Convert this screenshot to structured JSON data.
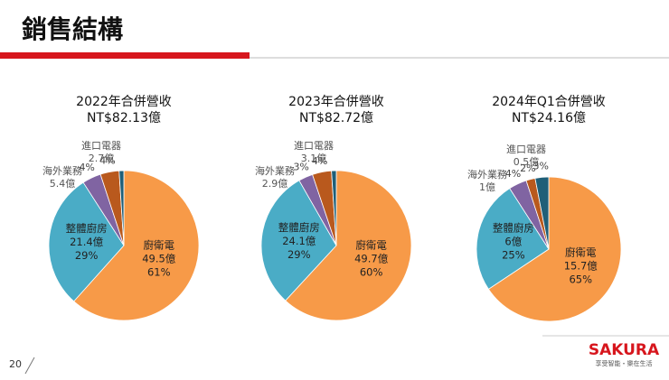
{
  "header": {
    "title": "銷售結構"
  },
  "page_number": "20",
  "logo": {
    "name": "SAKURA",
    "tagline": "享受智能・樂在生活"
  },
  "chart_data": [
    {
      "type": "pie",
      "title": "2022年合併營收",
      "subtitle": "NT$82.13億",
      "categories": [
        "廚衛電",
        "整體廚房",
        "海外業務",
        "進口電器",
        null
      ],
      "amounts": [
        "49.5億",
        "21.4億",
        "5.4億",
        "2.7億",
        null
      ],
      "values": [
        61,
        29,
        4,
        4,
        1
      ],
      "value_labels": [
        "61%",
        "29%",
        "4%",
        "4%",
        null
      ],
      "colors": [
        "#f79a48",
        "#4aacc6",
        "#8064a2",
        "#b9591d",
        "#1f5f78"
      ]
    },
    {
      "type": "pie",
      "title": "2023年合併營收",
      "subtitle": "NT$82.72億",
      "categories": [
        "廚衛電",
        "整體廚房",
        "海外業務",
        "進口電器",
        null
      ],
      "amounts": [
        "49.7億",
        "24.1億",
        "2.9億",
        "3.1億",
        null
      ],
      "values": [
        60,
        29,
        3,
        4,
        1
      ],
      "value_labels": [
        "60%",
        "29%",
        "3%",
        "4%",
        null
      ],
      "colors": [
        "#f79a48",
        "#4aacc6",
        "#8064a2",
        "#b9591d",
        "#1f5f78"
      ]
    },
    {
      "type": "pie",
      "title": "2024年Q1合併營收",
      "subtitle": "NT$24.16億",
      "categories": [
        "廚衛電",
        "整體廚房",
        "海外業務",
        "進口電器",
        null
      ],
      "amounts": [
        "15.7億",
        "6億",
        "1億",
        "0.5億",
        null
      ],
      "values": [
        65,
        25,
        4,
        2,
        3
      ],
      "value_labels": [
        "65%",
        "25%",
        "4%",
        "2%",
        "3%"
      ],
      "colors": [
        "#f79a48",
        "#4aacc6",
        "#8064a2",
        "#b9591d",
        "#1f5f78"
      ]
    }
  ]
}
